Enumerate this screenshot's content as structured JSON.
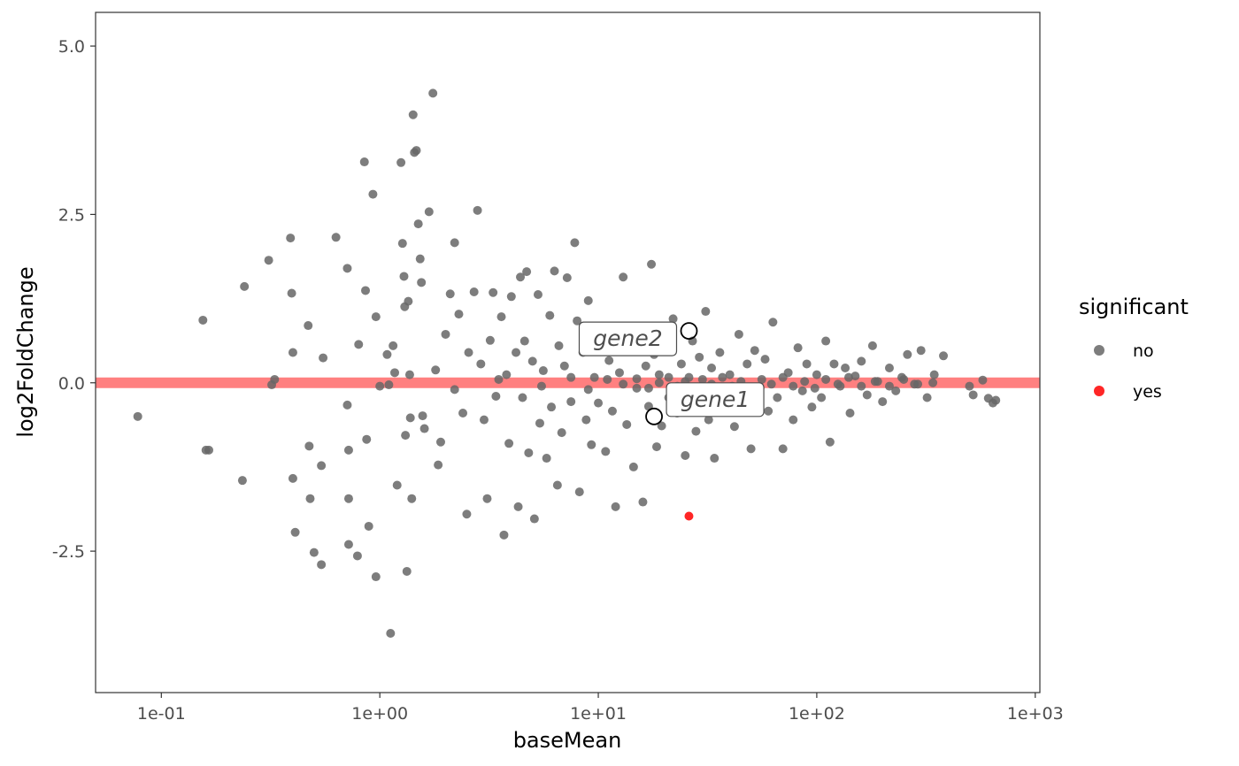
{
  "chart_data": {
    "type": "scatter",
    "title": "",
    "xlabel": "baseMean",
    "ylabel": "log2FoldChange",
    "x_scale": "log10",
    "xlim": [
      0.05,
      1050
    ],
    "ylim": [
      -4.6,
      5.5
    ],
    "x_ticks": [
      {
        "value": 0.1,
        "label": "1e-01"
      },
      {
        "value": 1,
        "label": "1e+00"
      },
      {
        "value": 10,
        "label": "1e+01"
      },
      {
        "value": 100,
        "label": "1e+02"
      },
      {
        "value": 1000,
        "label": "1e+03"
      }
    ],
    "y_ticks": [
      {
        "value": 5.0,
        "label": "5.0"
      },
      {
        "value": 2.5,
        "label": "2.5"
      },
      {
        "value": 0.0,
        "label": "0.0"
      },
      {
        "value": -2.5,
        "label": "-2.5"
      }
    ],
    "grid": false,
    "reference_line": {
      "y": 0,
      "color": "#ff8080"
    },
    "legend": {
      "title": "significant",
      "position": "right",
      "entries": [
        {
          "label": "no",
          "color": "#666666"
        },
        {
          "label": "yes",
          "color": "#ff0000"
        }
      ]
    },
    "series": [
      {
        "name": "no",
        "color": "#666666",
        "points": [
          [
            0.078,
            -0.5
          ],
          [
            0.155,
            0.93
          ],
          [
            0.16,
            -1.0
          ],
          [
            0.165,
            -1.0
          ],
          [
            0.235,
            -1.45
          ],
          [
            0.24,
            1.43
          ],
          [
            0.31,
            1.82
          ],
          [
            0.32,
            -0.03
          ],
          [
            0.39,
            2.15
          ],
          [
            0.395,
            1.33
          ],
          [
            0.4,
            0.45
          ],
          [
            0.41,
            -2.22
          ],
          [
            0.4,
            -1.42
          ],
          [
            0.47,
            0.85
          ],
          [
            0.475,
            -0.94
          ],
          [
            0.48,
            -1.72
          ],
          [
            0.5,
            -2.52
          ],
          [
            0.54,
            -2.7
          ],
          [
            0.55,
            0.37
          ],
          [
            0.54,
            -1.23
          ],
          [
            0.63,
            2.16
          ],
          [
            0.71,
            1.7
          ],
          [
            0.71,
            -0.33
          ],
          [
            0.72,
            -1.0
          ],
          [
            0.72,
            -1.72
          ],
          [
            0.72,
            -2.4
          ],
          [
            0.79,
            -2.57
          ],
          [
            0.8,
            0.57
          ],
          [
            0.85,
            3.28
          ],
          [
            0.86,
            1.37
          ],
          [
            0.87,
            -0.84
          ],
          [
            0.89,
            -2.13
          ],
          [
            0.93,
            2.8
          ],
          [
            0.96,
            0.98
          ],
          [
            0.96,
            -2.88
          ],
          [
            1.08,
            0.42
          ],
          [
            1.1,
            -0.03
          ],
          [
            1.12,
            -3.72
          ],
          [
            1.15,
            0.55
          ],
          [
            1.17,
            0.15
          ],
          [
            1.2,
            -1.52
          ],
          [
            1.25,
            3.27
          ],
          [
            1.27,
            2.07
          ],
          [
            1.29,
            1.58
          ],
          [
            1.3,
            1.13
          ],
          [
            1.31,
            -0.78
          ],
          [
            1.33,
            -2.8
          ],
          [
            1.35,
            1.21
          ],
          [
            1.37,
            0.12
          ],
          [
            1.38,
            -0.52
          ],
          [
            1.4,
            -1.72
          ],
          [
            1.42,
            3.98
          ],
          [
            1.44,
            3.42
          ],
          [
            1.47,
            3.45
          ],
          [
            1.5,
            2.36
          ],
          [
            1.53,
            1.84
          ],
          [
            1.55,
            1.49
          ],
          [
            1.57,
            -0.49
          ],
          [
            1.6,
            -0.68
          ],
          [
            1.68,
            2.54
          ],
          [
            1.75,
            4.3
          ],
          [
            1.8,
            0.19
          ],
          [
            1.85,
            -1.22
          ],
          [
            1.9,
            -0.88
          ],
          [
            2.0,
            0.72
          ],
          [
            2.1,
            1.32
          ],
          [
            2.2,
            2.08
          ],
          [
            2.3,
            1.02
          ],
          [
            2.4,
            -0.45
          ],
          [
            2.5,
            -1.95
          ],
          [
            2.55,
            0.45
          ],
          [
            2.7,
            1.35
          ],
          [
            2.8,
            2.56
          ],
          [
            2.9,
            0.28
          ],
          [
            3.0,
            -0.55
          ],
          [
            3.1,
            -1.72
          ],
          [
            3.2,
            0.63
          ],
          [
            3.3,
            1.34
          ],
          [
            3.4,
            -0.2
          ],
          [
            3.6,
            0.98
          ],
          [
            3.7,
            -2.26
          ],
          [
            3.8,
            0.12
          ],
          [
            3.9,
            -0.9
          ],
          [
            4.0,
            1.28
          ],
          [
            4.2,
            0.45
          ],
          [
            4.3,
            -1.84
          ],
          [
            4.4,
            1.57
          ],
          [
            4.5,
            -0.22
          ],
          [
            4.6,
            0.62
          ],
          [
            4.7,
            1.65
          ],
          [
            4.8,
            -1.04
          ],
          [
            5.0,
            0.32
          ],
          [
            5.1,
            -2.02
          ],
          [
            5.3,
            1.31
          ],
          [
            5.4,
            -0.6
          ],
          [
            5.6,
            0.18
          ],
          [
            5.8,
            -1.12
          ],
          [
            6.0,
            1.0
          ],
          [
            6.1,
            -0.36
          ],
          [
            6.3,
            1.66
          ],
          [
            6.5,
            -1.52
          ],
          [
            6.6,
            0.55
          ],
          [
            6.8,
            -0.74
          ],
          [
            7.0,
            0.25
          ],
          [
            7.2,
            1.56
          ],
          [
            7.5,
            -0.28
          ],
          [
            7.8,
            2.08
          ],
          [
            8.0,
            0.92
          ],
          [
            8.2,
            -1.62
          ],
          [
            8.5,
            0.45
          ],
          [
            8.8,
            -0.55
          ],
          [
            9.0,
            1.22
          ],
          [
            9.3,
            -0.92
          ],
          [
            9.6,
            0.08
          ],
          [
            10.0,
            -0.3
          ],
          [
            10.4,
            0.62
          ],
          [
            10.8,
            -1.02
          ],
          [
            11.2,
            0.33
          ],
          [
            11.6,
            -0.42
          ],
          [
            12.0,
            -1.84
          ],
          [
            12.5,
            0.15
          ],
          [
            13.0,
            1.57
          ],
          [
            13.5,
            -0.62
          ],
          [
            14.0,
            0.52
          ],
          [
            14.5,
            -1.25
          ],
          [
            15.0,
            -0.08
          ],
          [
            15.5,
            0.84
          ],
          [
            16.0,
            -1.77
          ],
          [
            16.5,
            0.25
          ],
          [
            17.0,
            -0.35
          ],
          [
            17.5,
            1.76
          ],
          [
            18.0,
            0.42
          ],
          [
            18.5,
            -0.95
          ],
          [
            19.0,
            0.12
          ],
          [
            19.5,
            -0.64
          ],
          [
            20.0,
            0.72
          ],
          [
            21.0,
            -0.22
          ],
          [
            22.0,
            0.95
          ],
          [
            23.0,
            -0.45
          ],
          [
            24.0,
            0.28
          ],
          [
            25.0,
            -1.08
          ],
          [
            26.0,
            0.08
          ],
          [
            27.0,
            0.62
          ],
          [
            28.0,
            -0.72
          ],
          [
            29.0,
            0.38
          ],
          [
            30.0,
            -0.18
          ],
          [
            31.0,
            1.06
          ],
          [
            32.0,
            -0.55
          ],
          [
            33.0,
            0.22
          ],
          [
            34.0,
            -1.12
          ],
          [
            36.0,
            0.45
          ],
          [
            38.0,
            -0.3
          ],
          [
            40.0,
            0.12
          ],
          [
            42.0,
            -0.65
          ],
          [
            44.0,
            0.72
          ],
          [
            46.0,
            -0.15
          ],
          [
            48.0,
            0.28
          ],
          [
            50.0,
            -0.98
          ],
          [
            52.0,
            0.48
          ],
          [
            55.0,
            -0.08
          ],
          [
            58.0,
            0.35
          ],
          [
            60.0,
            -0.42
          ],
          [
            63.0,
            0.9
          ],
          [
            66.0,
            -0.22
          ],
          [
            70.0,
            -0.98
          ],
          [
            74.0,
            0.15
          ],
          [
            78.0,
            -0.55
          ],
          [
            82.0,
            0.52
          ],
          [
            86.0,
            -0.12
          ],
          [
            90.0,
            0.28
          ],
          [
            95.0,
            -0.36
          ],
          [
            100.0,
            0.12
          ],
          [
            105.0,
            -0.22
          ],
          [
            110.0,
            0.62
          ],
          [
            115.0,
            -0.88
          ],
          [
            120.0,
            0.28
          ],
          [
            128.0,
            -0.05
          ],
          [
            135.0,
            0.22
          ],
          [
            142.0,
            -0.45
          ],
          [
            150.0,
            0.1
          ],
          [
            160.0,
            0.32
          ],
          [
            170.0,
            -0.18
          ],
          [
            180.0,
            0.55
          ],
          [
            190.0,
            0.02
          ],
          [
            200.0,
            -0.28
          ],
          [
            215.0,
            0.22
          ],
          [
            230.0,
            -0.12
          ],
          [
            245.0,
            0.08
          ],
          [
            260.0,
            0.42
          ],
          [
            280.0,
            -0.02
          ],
          [
            300.0,
            0.48
          ],
          [
            320.0,
            -0.22
          ],
          [
            345.0,
            0.12
          ],
          [
            380.0,
            0.4
          ],
          [
            500.0,
            -0.05
          ],
          [
            520.0,
            -0.18
          ],
          [
            575.0,
            0.04
          ],
          [
            610.0,
            -0.23
          ],
          [
            640.0,
            -0.3
          ],
          [
            660.0,
            -0.26
          ],
          [
            0.049,
            0.0
          ],
          [
            0.33,
            0.05
          ],
          [
            1.0,
            -0.05
          ],
          [
            2.2,
            -0.1
          ],
          [
            3.5,
            0.05
          ],
          [
            5.5,
            -0.05
          ],
          [
            7.5,
            0.08
          ],
          [
            9.0,
            -0.1
          ],
          [
            11.0,
            0.05
          ],
          [
            13.0,
            -0.02
          ],
          [
            15.0,
            0.06
          ],
          [
            17.0,
            -0.08
          ],
          [
            19.0,
            0.0
          ],
          [
            21.0,
            0.08
          ],
          [
            23.0,
            -0.05
          ],
          [
            25.0,
            0.02
          ],
          [
            27.0,
            -0.08
          ],
          [
            30.0,
            0.05
          ],
          [
            33.0,
            -0.02
          ],
          [
            37.0,
            0.08
          ],
          [
            41.0,
            -0.05
          ],
          [
            45.0,
            0.02
          ],
          [
            50.0,
            -0.08
          ],
          [
            56.0,
            0.05
          ],
          [
            62.0,
            -0.02
          ],
          [
            70.0,
            0.08
          ],
          [
            78.0,
            -0.05
          ],
          [
            88.0,
            0.02
          ],
          [
            98.0,
            -0.08
          ],
          [
            110.0,
            0.05
          ],
          [
            125.0,
            -0.02
          ],
          [
            140.0,
            0.08
          ],
          [
            160.0,
            -0.05
          ],
          [
            185.0,
            0.02
          ],
          [
            215.0,
            -0.05
          ],
          [
            250.0,
            0.05
          ],
          [
            290.0,
            -0.02
          ],
          [
            340.0,
            0.0
          ]
        ]
      },
      {
        "name": "yes",
        "color": "#ff0000",
        "points": [
          [
            26.0,
            -1.98
          ]
        ]
      }
    ],
    "annotations": [
      {
        "label": "gene1",
        "x": 18.0,
        "y": -0.5
      },
      {
        "label": "gene2",
        "x": 26.0,
        "y": 0.77
      }
    ]
  }
}
